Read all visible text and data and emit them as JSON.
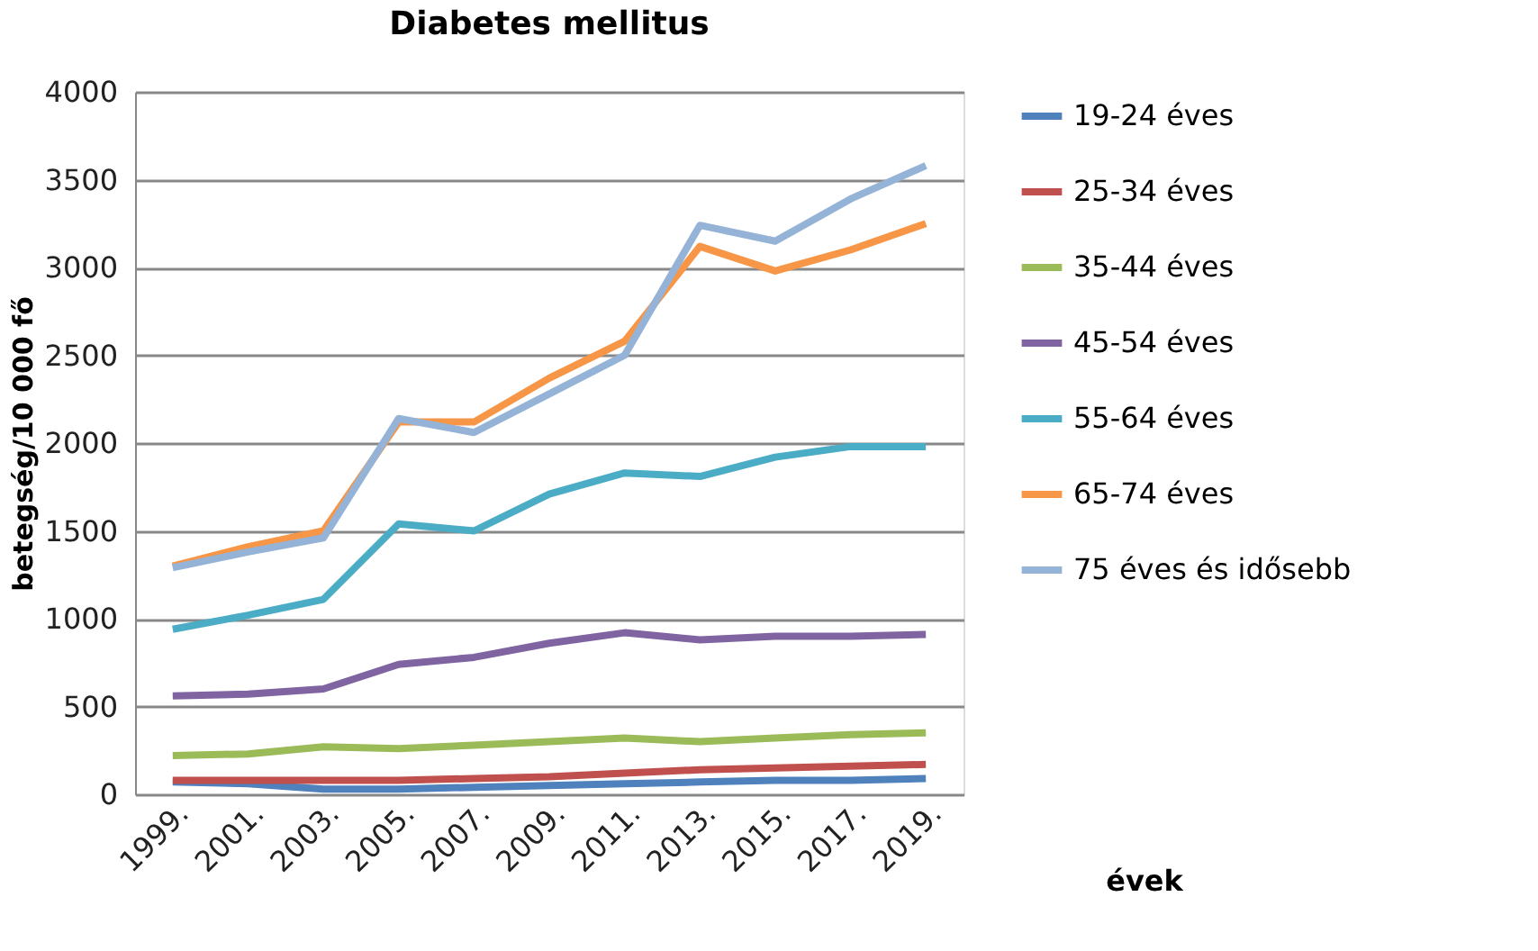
{
  "chart_data": {
    "type": "line",
    "title": "Diabetes mellitus",
    "xlabel": "évek",
    "ylabel": "betegség/10 000 fő",
    "categories": [
      "1999.",
      "2001.",
      "2003.",
      "2005.",
      "2007.",
      "2009.",
      "2011.",
      "2013.",
      "2015.",
      "2017.",
      "2019."
    ],
    "series": [
      {
        "name": "19-24 éves",
        "color": "#4f81bd",
        "values": [
          70,
          60,
          30,
          30,
          40,
          50,
          60,
          70,
          80,
          80,
          90
        ]
      },
      {
        "name": "25-34 éves",
        "color": "#c0504d",
        "values": [
          80,
          80,
          80,
          80,
          90,
          100,
          120,
          140,
          150,
          160,
          170
        ]
      },
      {
        "name": "35-44 éves",
        "color": "#9bbb59",
        "values": [
          220,
          230,
          270,
          260,
          280,
          300,
          320,
          300,
          320,
          340,
          350
        ]
      },
      {
        "name": "45-54 éves",
        "color": "#8064a2",
        "values": [
          560,
          570,
          600,
          740,
          780,
          860,
          920,
          880,
          900,
          900,
          910
        ]
      },
      {
        "name": "55-64 éves",
        "color": "#4bacc6",
        "values": [
          940,
          1020,
          1110,
          1540,
          1500,
          1710,
          1830,
          1810,
          1920,
          1980,
          1980
        ]
      },
      {
        "name": "65-74 éves",
        "color": "#f79646",
        "values": [
          1300,
          1410,
          1500,
          2120,
          2120,
          2370,
          2580,
          3120,
          2980,
          3100,
          3250
        ]
      },
      {
        "name": "75 éves és idősebb",
        "color": "#95b3d7",
        "values": [
          1290,
          1380,
          1460,
          2140,
          2060,
          2280,
          2500,
          3240,
          3150,
          3390,
          3580
        ]
      }
    ],
    "ylim": [
      0,
      4000
    ],
    "yticks": [
      0,
      500,
      1000,
      1500,
      2000,
      2500,
      3000,
      3500,
      4000
    ],
    "grid": "y",
    "legend": "right",
    "marker": "none",
    "line_style": "solid"
  }
}
